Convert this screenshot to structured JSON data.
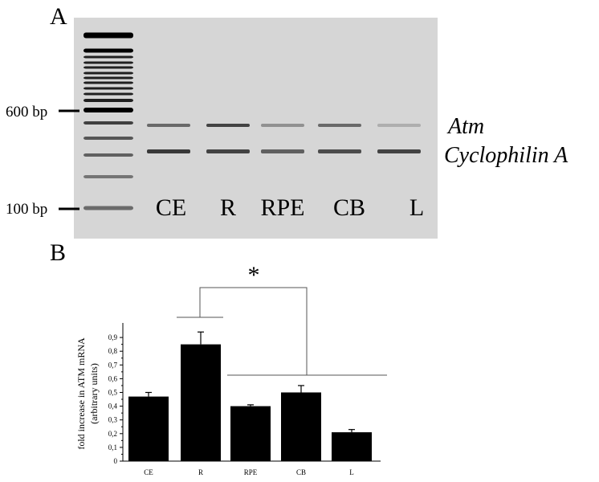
{
  "panel_a": {
    "label": "A",
    "marker_600": "600 bp",
    "marker_100": "100 bp",
    "band_atm": "Atm",
    "band_cyclophilin": "Cyclophilin A",
    "lanes": [
      "CE",
      "R",
      "RPE",
      "CB",
      "L"
    ],
    "atm_intensity": [
      0.55,
      0.75,
      0.35,
      0.55,
      0.2
    ],
    "cyclophilin_intensity": [
      0.8,
      0.75,
      0.6,
      0.7,
      0.75
    ]
  },
  "panel_b": {
    "label": "B",
    "significance": "*"
  },
  "chart_data": {
    "type": "bar",
    "title": "",
    "xlabel": "",
    "ylabel": "fold increase in ATM mRNA",
    "ylabel2": "(arbitrary units)",
    "categories": [
      "CE",
      "R",
      "RPE",
      "CB",
      "L"
    ],
    "values": [
      0.47,
      0.85,
      0.4,
      0.5,
      0.21
    ],
    "error": [
      0.03,
      0.09,
      0.01,
      0.05,
      0.02
    ],
    "ylim": [
      0,
      1.0
    ],
    "yticks": [
      "0",
      "0,1",
      "0,2",
      "0,3",
      "0,4",
      "0,5",
      "0,6",
      "0,7",
      "0,8",
      "0,9"
    ],
    "grid": false,
    "bar_color": "#000000",
    "annotation": "* R vs CE, RPE, CB, L"
  }
}
